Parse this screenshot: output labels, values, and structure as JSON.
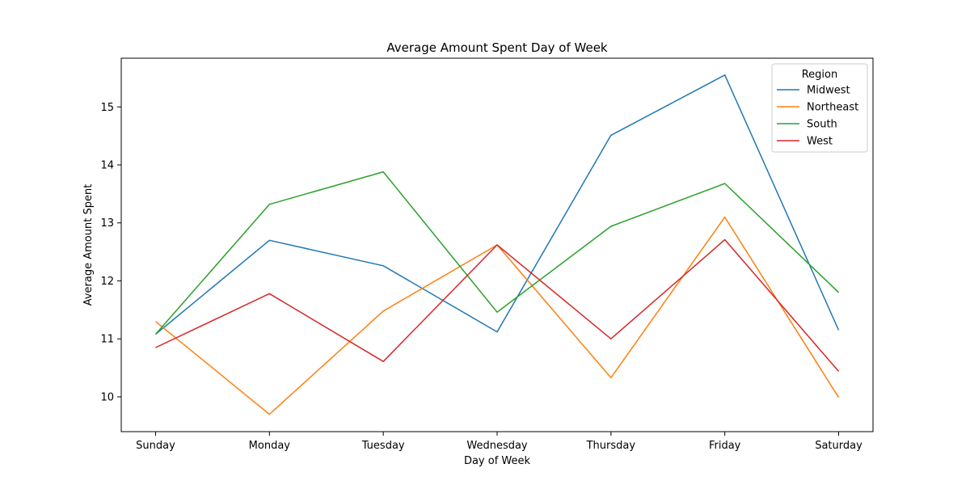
{
  "chart_data": {
    "type": "line",
    "title": "Average Amount Spent Day of Week",
    "xlabel": "Day of Week",
    "ylabel": "Average Amount Spent",
    "categories": [
      "Sunday",
      "Monday",
      "Tuesday",
      "Wednesday",
      "Thursday",
      "Friday",
      "Saturday"
    ],
    "ylim": [
      9.4,
      15.84
    ],
    "yticks": [
      10,
      11,
      12,
      13,
      14,
      15
    ],
    "grid": false,
    "legend": {
      "title": "Region",
      "placement": "top-right"
    },
    "series": [
      {
        "name": "Midwest",
        "color": "#1f77b4",
        "values": [
          11.08,
          12.7,
          12.26,
          11.12,
          14.51,
          15.55,
          11.15
        ]
      },
      {
        "name": "Northeast",
        "color": "#ff7f0e",
        "values": [
          11.3,
          9.7,
          11.48,
          12.62,
          10.33,
          13.1,
          9.99
        ]
      },
      {
        "name": "South",
        "color": "#2ca02c",
        "values": [
          11.08,
          13.32,
          13.88,
          11.46,
          12.94,
          13.68,
          11.8
        ]
      },
      {
        "name": "West",
        "color": "#d62728",
        "values": [
          10.85,
          11.78,
          10.61,
          12.62,
          11.0,
          12.71,
          10.44
        ]
      }
    ]
  }
}
